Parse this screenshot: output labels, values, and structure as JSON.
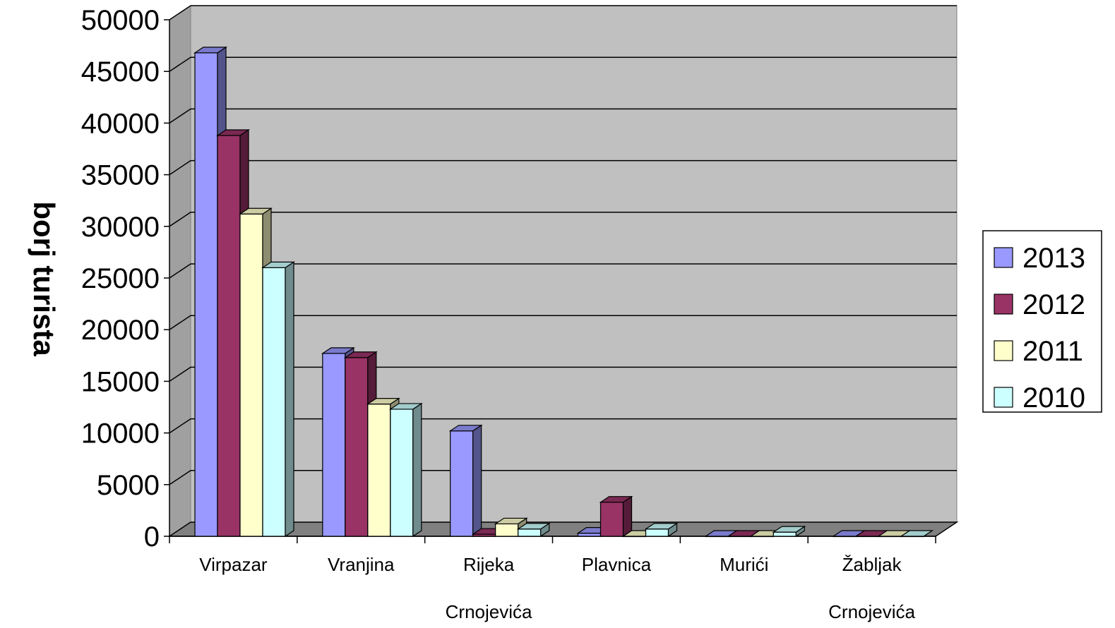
{
  "chart_data": {
    "type": "bar",
    "ylabel": "borj turista",
    "xlabel": "",
    "ylim": [
      0,
      50000
    ],
    "yticks": [
      0,
      5000,
      10000,
      15000,
      20000,
      25000,
      30000,
      35000,
      40000,
      45000,
      50000
    ],
    "categories": [
      {
        "line1": "Virpazar",
        "line2": ""
      },
      {
        "line1": "Vranjina",
        "line2": ""
      },
      {
        "line1": "Rijeka",
        "line2": "Crnojevića"
      },
      {
        "line1": "Plavnica",
        "line2": ""
      },
      {
        "line1": "Murići",
        "line2": ""
      },
      {
        "line1": "Žabljak",
        "line2": "Crnojevića"
      }
    ],
    "series": [
      {
        "name": "2013",
        "color": "#9999ff",
        "values": [
          46800,
          17700,
          10200,
          300,
          0,
          0
        ]
      },
      {
        "name": "2012",
        "color": "#993366",
        "values": [
          38800,
          17300,
          200,
          3300,
          0,
          0
        ]
      },
      {
        "name": "2011",
        "color": "#ffffcc",
        "values": [
          31200,
          12800,
          1200,
          0,
          0,
          0
        ]
      },
      {
        "name": "2010",
        "color": "#ccffff",
        "values": [
          26000,
          12300,
          700,
          700,
          400,
          0
        ]
      }
    ],
    "grid": true,
    "legend_position": "right",
    "plot_background": "#c0c0c0",
    "floor_color": "#808080"
  }
}
